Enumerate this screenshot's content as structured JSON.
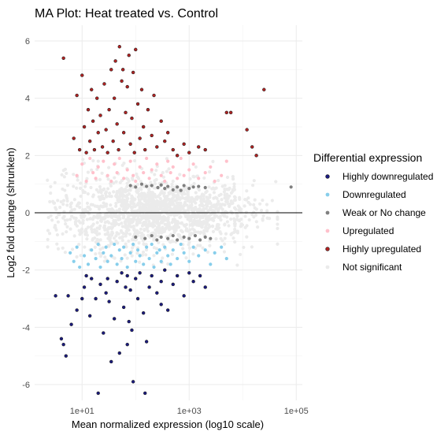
{
  "chart_data": {
    "type": "scatter",
    "title": "MA Plot: Heat treated vs. Control",
    "xlabel": "Mean normalized expression (log10 scale)",
    "ylabel": "Log2 fold change (shrunken)",
    "x_scale": "log10",
    "xlim": [
      1.3,
      130000
    ],
    "ylim": [
      -6.55,
      6.55
    ],
    "x_ticks": [
      10,
      1000,
      100000
    ],
    "x_tick_labels": [
      "1e+01",
      "1e+03",
      "1e+05"
    ],
    "y_ticks": [
      -6,
      -4,
      -2,
      0,
      2,
      4,
      6
    ],
    "y_tick_labels": [
      "-6",
      "-4",
      "-2",
      "0",
      "2",
      "4",
      "6"
    ],
    "reference_line_y": 0,
    "grid": true,
    "legend_title": "Differential expression",
    "legend_position": "right",
    "series": [
      {
        "name": "Highly downregulated",
        "color": "#1a1a80",
        "points": [
          [
            3.2,
            -2.9
          ],
          [
            4.1,
            -4.4
          ],
          [
            4.5,
            -4.6
          ],
          [
            5.0,
            -5.0
          ],
          [
            5.5,
            -2.9
          ],
          [
            6.3,
            -3.9
          ],
          [
            8.0,
            -3.4
          ],
          [
            10.0,
            -3.0
          ],
          [
            11,
            -2.6
          ],
          [
            12,
            -2.2
          ],
          [
            14,
            -3.6
          ],
          [
            15,
            -2.3
          ],
          [
            18,
            -3.0
          ],
          [
            20,
            -6.3
          ],
          [
            22,
            -2.5
          ],
          [
            25,
            -4.2
          ],
          [
            28,
            -2.8
          ],
          [
            30,
            -2.3
          ],
          [
            32,
            -3.1
          ],
          [
            35,
            -5.2
          ],
          [
            40,
            -3.7
          ],
          [
            45,
            -2.4
          ],
          [
            50,
            -4.9
          ],
          [
            55,
            -2.1
          ],
          [
            60,
            -3.3
          ],
          [
            65,
            -2.6
          ],
          [
            70,
            -2.2
          ],
          [
            75,
            -3.8
          ],
          [
            80,
            -2.7
          ],
          [
            85,
            -4.1
          ],
          [
            90,
            -5.9
          ],
          [
            100,
            -2.3
          ],
          [
            110,
            -3.0
          ],
          [
            120,
            -2.1
          ],
          [
            140,
            -3.5
          ],
          [
            160,
            -4.5
          ],
          [
            180,
            -2.6
          ],
          [
            200,
            -2.2
          ],
          [
            250,
            -2.8
          ],
          [
            300,
            -3.2
          ],
          [
            350,
            -2.0
          ],
          [
            400,
            -3.4
          ],
          [
            500,
            -2.5
          ],
          [
            600,
            -2.2
          ],
          [
            800,
            -2.9
          ],
          [
            1000,
            -2.1
          ],
          [
            1200,
            -2.4
          ],
          [
            1600,
            -2.2
          ],
          [
            2000,
            -2.6
          ],
          [
            150,
            -6.3
          ],
          [
            70,
            -4.6
          ],
          [
            300,
            -2.4
          ]
        ]
      },
      {
        "name": "Downregulated",
        "color": "#87ceeb",
        "points": [
          [
            6,
            -1.4
          ],
          [
            7,
            -1.7
          ],
          [
            8,
            -1.2
          ],
          [
            9,
            -1.9
          ],
          [
            11,
            -1.5
          ],
          [
            13,
            -1.8
          ],
          [
            15,
            -1.3
          ],
          [
            18,
            -1.6
          ],
          [
            20,
            -1.1
          ],
          [
            22,
            -1.9
          ],
          [
            25,
            -1.4
          ],
          [
            28,
            -1.2
          ],
          [
            30,
            -1.7
          ],
          [
            35,
            -1.5
          ],
          [
            40,
            -1.1
          ],
          [
            45,
            -1.8
          ],
          [
            50,
            -1.3
          ],
          [
            55,
            -1.6
          ],
          [
            60,
            -1.2
          ],
          [
            70,
            -1.9
          ],
          [
            80,
            -1.4
          ],
          [
            90,
            -1.1
          ],
          [
            100,
            -1.7
          ],
          [
            110,
            -1.3
          ],
          [
            120,
            -1.5
          ],
          [
            140,
            -1.8
          ],
          [
            160,
            -1.2
          ],
          [
            180,
            -1.6
          ],
          [
            200,
            -1.1
          ],
          [
            220,
            -1.9
          ],
          [
            250,
            -1.4
          ],
          [
            280,
            -1.3
          ],
          [
            300,
            -1.7
          ],
          [
            350,
            -1.2
          ],
          [
            400,
            -1.5
          ],
          [
            450,
            -1.8
          ],
          [
            500,
            -1.3
          ],
          [
            600,
            -1.6
          ],
          [
            700,
            -1.1
          ],
          [
            800,
            -1.4
          ],
          [
            1000,
            -1.7
          ],
          [
            1200,
            -1.2
          ],
          [
            1500,
            -1.5
          ],
          [
            2000,
            -1.3
          ],
          [
            2500,
            -1.8
          ],
          [
            3000,
            -1.4
          ],
          [
            4000,
            -1.2
          ],
          [
            5000,
            -1.6
          ]
        ]
      },
      {
        "name": "Weak or No change",
        "color": "#808080",
        "points": [
          [
            80,
            0.95
          ],
          [
            100,
            0.9
          ],
          [
            130,
            1.0
          ],
          [
            160,
            0.92
          ],
          [
            200,
            0.95
          ],
          [
            260,
            0.88
          ],
          [
            300,
            0.97
          ],
          [
            350,
            0.85
          ],
          [
            400,
            0.92
          ],
          [
            500,
            0.8
          ],
          [
            600,
            0.9
          ],
          [
            700,
            0.78
          ],
          [
            800,
            0.95
          ],
          [
            1000,
            0.85
          ],
          [
            1200,
            0.9
          ],
          [
            1500,
            0.92
          ],
          [
            2000,
            0.88
          ],
          [
            80000,
            0.9
          ],
          [
            100,
            -0.85
          ],
          [
            150,
            -0.9
          ],
          [
            200,
            -0.8
          ],
          [
            250,
            -0.95
          ],
          [
            300,
            -0.85
          ],
          [
            400,
            -0.9
          ],
          [
            500,
            -0.8
          ],
          [
            600,
            -0.95
          ],
          [
            800,
            -0.85
          ],
          [
            1000,
            -0.9
          ],
          [
            1300,
            -0.8
          ],
          [
            1600,
            -0.95
          ],
          [
            2000,
            -0.85
          ],
          [
            2500,
            -0.9
          ]
        ]
      },
      {
        "name": "Upregulated",
        "color": "#ffc0cb",
        "points": [
          [
            8,
            1.3
          ],
          [
            10,
            1.7
          ],
          [
            12,
            1.1
          ],
          [
            14,
            1.9
          ],
          [
            16,
            1.4
          ],
          [
            18,
            1.2
          ],
          [
            20,
            1.6
          ],
          [
            25,
            1.8
          ],
          [
            30,
            1.3
          ],
          [
            35,
            1.1
          ],
          [
            40,
            1.7
          ],
          [
            45,
            1.4
          ],
          [
            50,
            1.9
          ],
          [
            60,
            1.2
          ],
          [
            70,
            1.5
          ],
          [
            80,
            1.8
          ],
          [
            90,
            1.3
          ],
          [
            100,
            1.1
          ],
          [
            120,
            1.6
          ],
          [
            140,
            1.4
          ],
          [
            160,
            1.9
          ],
          [
            180,
            1.2
          ],
          [
            200,
            1.5
          ],
          [
            250,
            1.7
          ],
          [
            300,
            1.3
          ],
          [
            350,
            1.1
          ],
          [
            400,
            1.8
          ],
          [
            450,
            1.4
          ],
          [
            500,
            1.6
          ],
          [
            600,
            1.2
          ],
          [
            700,
            1.9
          ],
          [
            800,
            1.3
          ],
          [
            1000,
            1.5
          ],
          [
            1200,
            1.7
          ],
          [
            1500,
            1.2
          ],
          [
            2000,
            1.4
          ],
          [
            2500,
            1.6
          ],
          [
            3000,
            1.1
          ],
          [
            4000,
            1.3
          ],
          [
            5000,
            1.8
          ]
        ]
      },
      {
        "name": "Highly upregulated",
        "color": "#b22222",
        "points": [
          [
            4.5,
            5.4
          ],
          [
            7,
            2.6
          ],
          [
            8,
            4.1
          ],
          [
            9,
            2.2
          ],
          [
            10,
            4.8
          ],
          [
            11,
            3.0
          ],
          [
            12,
            2.1
          ],
          [
            13,
            3.6
          ],
          [
            14,
            2.5
          ],
          [
            15,
            4.3
          ],
          [
            16,
            3.2
          ],
          [
            17,
            2.2
          ],
          [
            19,
            4.0
          ],
          [
            20,
            2.8
          ],
          [
            22,
            3.4
          ],
          [
            24,
            2.3
          ],
          [
            26,
            4.5
          ],
          [
            28,
            2.9
          ],
          [
            30,
            2.1
          ],
          [
            32,
            3.6
          ],
          [
            35,
            5.0
          ],
          [
            38,
            2.5
          ],
          [
            40,
            4.0
          ],
          [
            42,
            5.3
          ],
          [
            45,
            3.1
          ],
          [
            48,
            2.2
          ],
          [
            50,
            5.8
          ],
          [
            55,
            4.6
          ],
          [
            58,
            5.0
          ],
          [
            60,
            2.8
          ],
          [
            65,
            3.5
          ],
          [
            70,
            4.4
          ],
          [
            75,
            5.5
          ],
          [
            80,
            2.4
          ],
          [
            85,
            3.3
          ],
          [
            90,
            4.9
          ],
          [
            95,
            2.1
          ],
          [
            100,
            5.7
          ],
          [
            110,
            3.8
          ],
          [
            120,
            2.6
          ],
          [
            130,
            4.3
          ],
          [
            140,
            3.0
          ],
          [
            150,
            2.2
          ],
          [
            170,
            3.6
          ],
          [
            200,
            2.7
          ],
          [
            220,
            4.1
          ],
          [
            250,
            2.3
          ],
          [
            300,
            3.2
          ],
          [
            350,
            2.5
          ],
          [
            400,
            2.8
          ],
          [
            500,
            2.2
          ],
          [
            600,
            2.0
          ],
          [
            800,
            2.4
          ],
          [
            1000,
            2.1
          ],
          [
            1500,
            2.3
          ],
          [
            2000,
            2.2
          ],
          [
            5000,
            3.5
          ],
          [
            6000,
            3.5
          ],
          [
            12000,
            2.9
          ],
          [
            25000,
            4.3
          ],
          [
            15000,
            2.3
          ],
          [
            18000,
            2.0
          ]
        ]
      },
      {
        "name": "Not significant",
        "color": "#ebebeb",
        "points": []
      }
    ]
  }
}
